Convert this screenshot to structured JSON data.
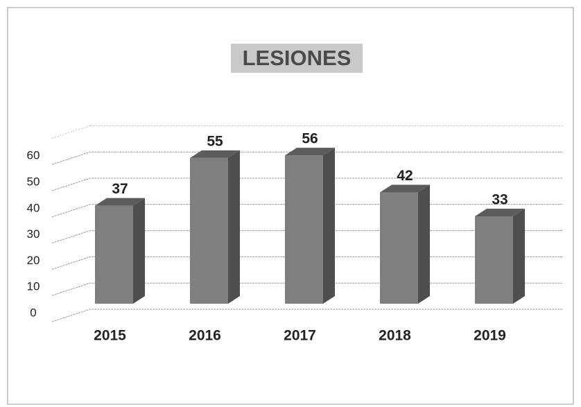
{
  "chart_data": {
    "type": "bar3d",
    "title": "LESIONES",
    "categories": [
      "2015",
      "2016",
      "2017",
      "2018",
      "2019"
    ],
    "values": [
      37,
      55,
      56,
      42,
      33
    ],
    "color": "#7f7f7f",
    "ylim": [
      0,
      70
    ],
    "yticks": [
      0,
      10,
      20,
      30,
      40,
      50,
      60
    ],
    "grid": true
  }
}
